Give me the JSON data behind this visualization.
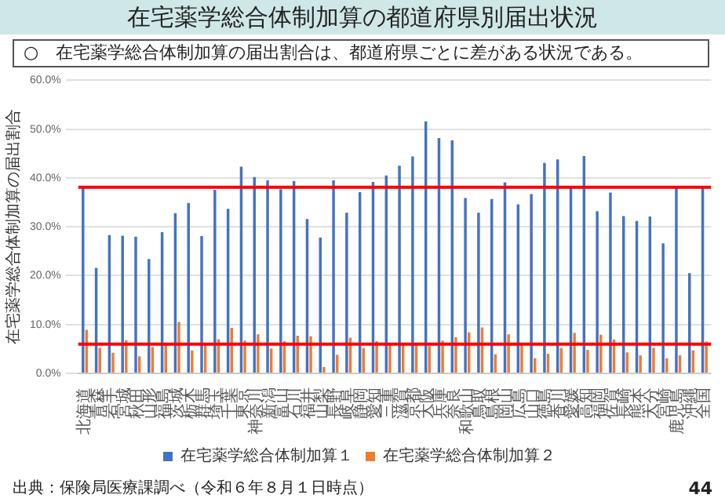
{
  "chart_data": {
    "type": "bar",
    "title": "在宅薬学総合体制加算の都道府県別届出状況",
    "subtitle": "○　在宅薬学総合体制加算の届出割合は、都道府県ごとに差がある状況である。",
    "ylabel": "在宅薬学総合体制加算の届出割合",
    "categories": [
      "北海道",
      "青森",
      "岩手",
      "宮城",
      "秋田",
      "山形",
      "福島",
      "茨城",
      "栃木",
      "群馬",
      "埼玉",
      "千葉",
      "東京",
      "神奈川",
      "新潟",
      "富山",
      "石川",
      "福井",
      "山梨",
      "長野",
      "岐阜",
      "静岡",
      "愛知",
      "三重",
      "滋賀",
      "京都",
      "大阪",
      "兵庫",
      "奈良",
      "和歌山",
      "鳥取",
      "島根",
      "岡山",
      "広島",
      "山口",
      "徳島",
      "香川",
      "愛媛",
      "高知",
      "福岡",
      "佐賀",
      "長崎",
      "熊本",
      "大分",
      "宮崎",
      "鹿児島",
      "沖縄",
      "全国"
    ],
    "series": [
      {
        "name": "在宅薬学総合体制加算１",
        "color": "#4472c4",
        "values": [
          38.1,
          21.6,
          28.3,
          28.2,
          28.0,
          23.4,
          28.9,
          32.8,
          34.9,
          28.1,
          37.6,
          33.7,
          42.3,
          40.2,
          39.5,
          37.7,
          39.4,
          31.6,
          27.8,
          39.5,
          32.9,
          37.1,
          39.2,
          40.5,
          42.5,
          44.4,
          51.6,
          48.2,
          47.7,
          35.9,
          32.9,
          35.7,
          39.1,
          34.6,
          36.7,
          43.1,
          43.8,
          38.1,
          44.5,
          33.2,
          37.0,
          32.2,
          31.2,
          32.1,
          26.6,
          38.1,
          20.5,
          38.1
        ]
      },
      {
        "name": "在宅薬学総合体制加算２",
        "color": "#ed7d31",
        "values": [
          8.9,
          5.2,
          4.2,
          6.8,
          3.5,
          5.4,
          5.9,
          10.5,
          4.7,
          5.9,
          7.0,
          9.3,
          6.7,
          8.0,
          5.1,
          6.6,
          7.7,
          7.6,
          1.3,
          3.8,
          7.3,
          5.2,
          6.6,
          5.8,
          6.1,
          6.3,
          5.6,
          6.7,
          7.4,
          8.4,
          9.4,
          3.9,
          8.0,
          6.1,
          3.1,
          4.0,
          5.2,
          8.3,
          4.8,
          7.9,
          6.9,
          4.3,
          3.7,
          5.2,
          3.1,
          3.7,
          4.7,
          6.5
        ]
      }
    ],
    "ylim": [
      0,
      60
    ],
    "yticks": [
      {
        "value": 0,
        "label": "0.0%"
      },
      {
        "value": 10,
        "label": "10.0%"
      },
      {
        "value": 20,
        "label": "20.0%"
      },
      {
        "value": 30,
        "label": "30.0%"
      },
      {
        "value": 40,
        "label": "40.0%"
      },
      {
        "value": 50,
        "label": "50.0%"
      },
      {
        "value": 60,
        "label": "60.0%"
      }
    ],
    "ref_lines": [
      {
        "axis": "y",
        "value": 38.1,
        "color": "#ff0000"
      },
      {
        "axis": "y",
        "value": 6.0,
        "color": "#ff0000"
      }
    ],
    "grid": "y",
    "legend": "bottom",
    "annotations": [
      "出典：保険局医療課調べ（令和６年８月１日時点）",
      "44"
    ]
  }
}
